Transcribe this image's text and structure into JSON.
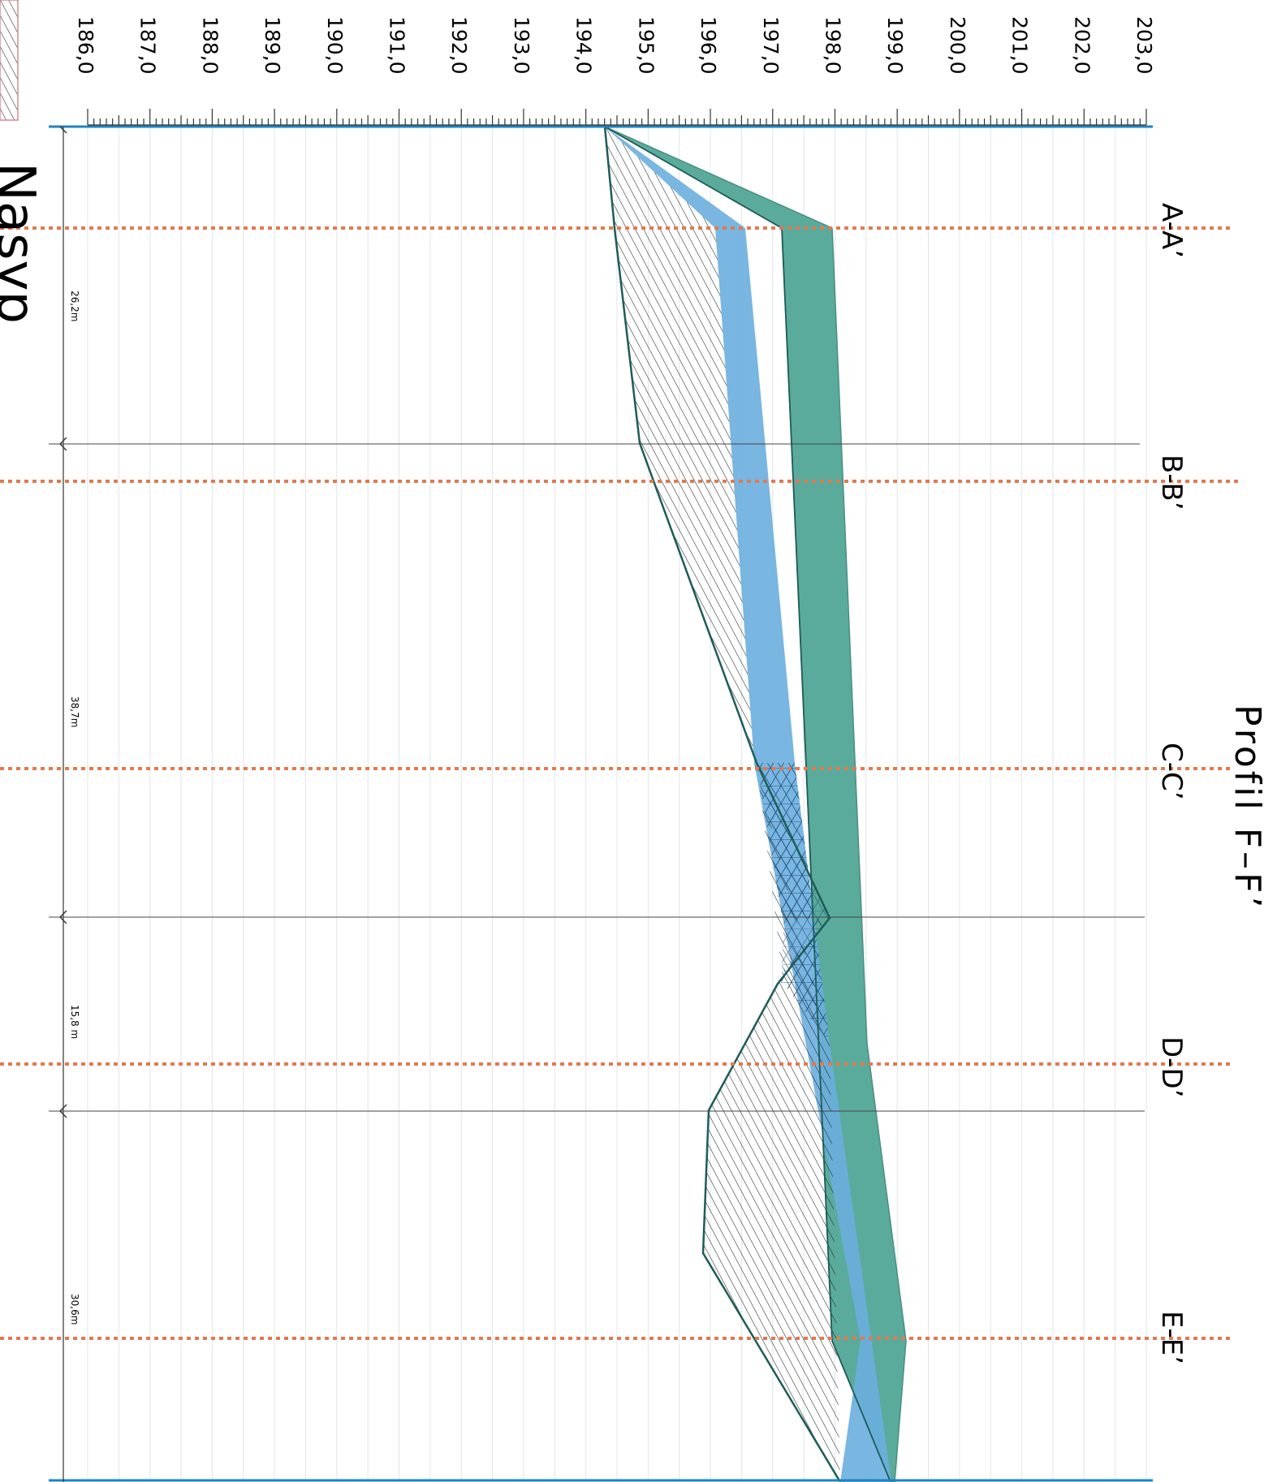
{
  "drawing": {
    "title": "Profil  F–F’",
    "legend_caption": "Nasyp"
  },
  "elevation_axis": {
    "ticks": [
      "186,0",
      "187,0",
      "188,0",
      "189,0",
      "190,0",
      "191,0",
      "192,0",
      "193,0",
      "194,0",
      "195,0",
      "196,0",
      "197,0",
      "198,0",
      "199,0",
      "200,0",
      "201,0",
      "202,0",
      "203,0"
    ],
    "min": 186.0,
    "max": 203.0
  },
  "sections": [
    {
      "label": "A-A’"
    },
    {
      "label": "B-B’"
    },
    {
      "label": "C-C’"
    },
    {
      "label": "D-D’"
    },
    {
      "label": "E-E’"
    }
  ],
  "segments": [
    {
      "label": "26,2m"
    },
    {
      "label": "38,7m"
    },
    {
      "label": "15,8 m"
    },
    {
      "label": "30,6m"
    }
  ],
  "colors": {
    "fill_layer": "#5aab9c",
    "blue_layer": "#6aaede",
    "hatch_line": "#1a1a1a",
    "ground_line": "#1e5c58",
    "section_line": "#e07a50",
    "axis_line": "#1d84c2"
  }
}
